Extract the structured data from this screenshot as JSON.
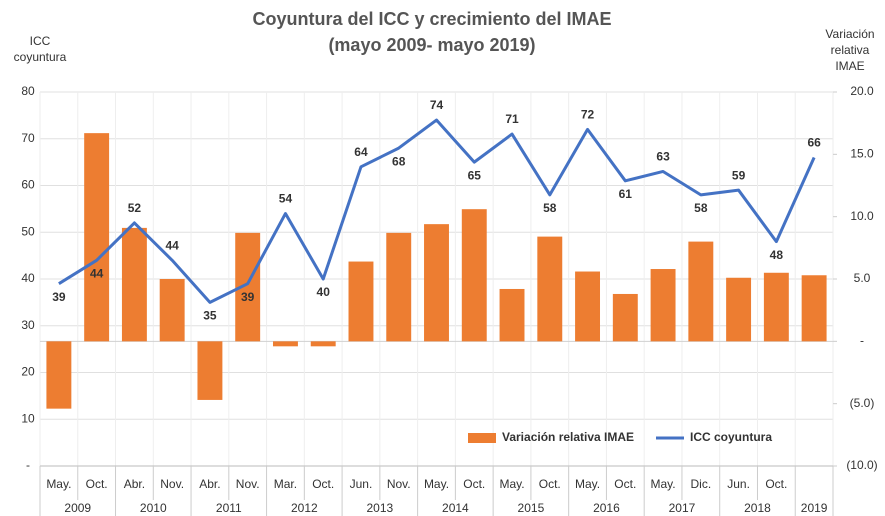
{
  "chart_data": {
    "type": "bar_line",
    "title": [
      "Coyuntura del ICC y crecimiento del IMAE",
      "(mayo 2009- mayo 2019)"
    ],
    "y_label": [
      "ICC",
      "coyuntura"
    ],
    "y2_label": [
      "Variación",
      "relativa",
      "IMAE"
    ],
    "categories": [
      "May.",
      "Oct.",
      "Abr.",
      "Nov.",
      "Abr.",
      "Nov.",
      "Mar.",
      "Oct.",
      "Jun.",
      "Nov.",
      "May.",
      "Oct.",
      "May.",
      "Oct.",
      "May.",
      "Oct.",
      "May.",
      "Dic.",
      "Jun.",
      "Oct.",
      null
    ],
    "year_groups": [
      {
        "label": "2009",
        "count": 2
      },
      {
        "label": "2010",
        "count": 2
      },
      {
        "label": "2011",
        "count": 2
      },
      {
        "label": "2012",
        "count": 2
      },
      {
        "label": "2013",
        "count": 2
      },
      {
        "label": "2014",
        "count": 2
      },
      {
        "label": "2015",
        "count": 2
      },
      {
        "label": "2016",
        "count": 2
      },
      {
        "label": "2017",
        "count": 2
      },
      {
        "label": "2018",
        "count": 2
      },
      {
        "label": "2019",
        "count": 1
      }
    ],
    "series": [
      {
        "name": "Variación relativa IMAE",
        "type": "bar",
        "axis": "y2",
        "color": "#ed7d31",
        "values": [
          -5.4,
          16.7,
          9.1,
          5.0,
          -4.7,
          8.7,
          -0.4,
          -0.4,
          6.4,
          8.7,
          9.4,
          10.6,
          4.2,
          8.4,
          5.6,
          3.8,
          5.8,
          8.0,
          5.1,
          5.5,
          5.3
        ]
      },
      {
        "name": "ICC coyuntura",
        "type": "line",
        "axis": "y",
        "color": "#4472c4",
        "values": [
          39,
          44,
          52,
          44,
          35,
          39,
          54,
          40,
          64,
          68,
          74,
          65,
          71,
          58,
          72,
          61,
          63,
          58,
          59,
          48,
          66
        ]
      }
    ],
    "ylim": [
      0,
      80
    ],
    "yticks": [
      {
        "value": 0,
        "label": "-"
      },
      10,
      20,
      30,
      40,
      50,
      60,
      70,
      80
    ],
    "y2lim": [
      -10,
      20
    ],
    "y2ticks": [
      {
        "value": -10,
        "label": "(10.0)"
      },
      {
        "value": -5,
        "label": "(5.0)"
      },
      {
        "value": 0,
        "label": "-"
      },
      {
        "value": 5,
        "label": "5.0"
      },
      {
        "value": 10,
        "label": "10.0"
      },
      {
        "value": 15,
        "label": "15.0"
      },
      {
        "value": 20,
        "label": "20.0"
      }
    ],
    "grid": true,
    "legend": "lower right"
  }
}
